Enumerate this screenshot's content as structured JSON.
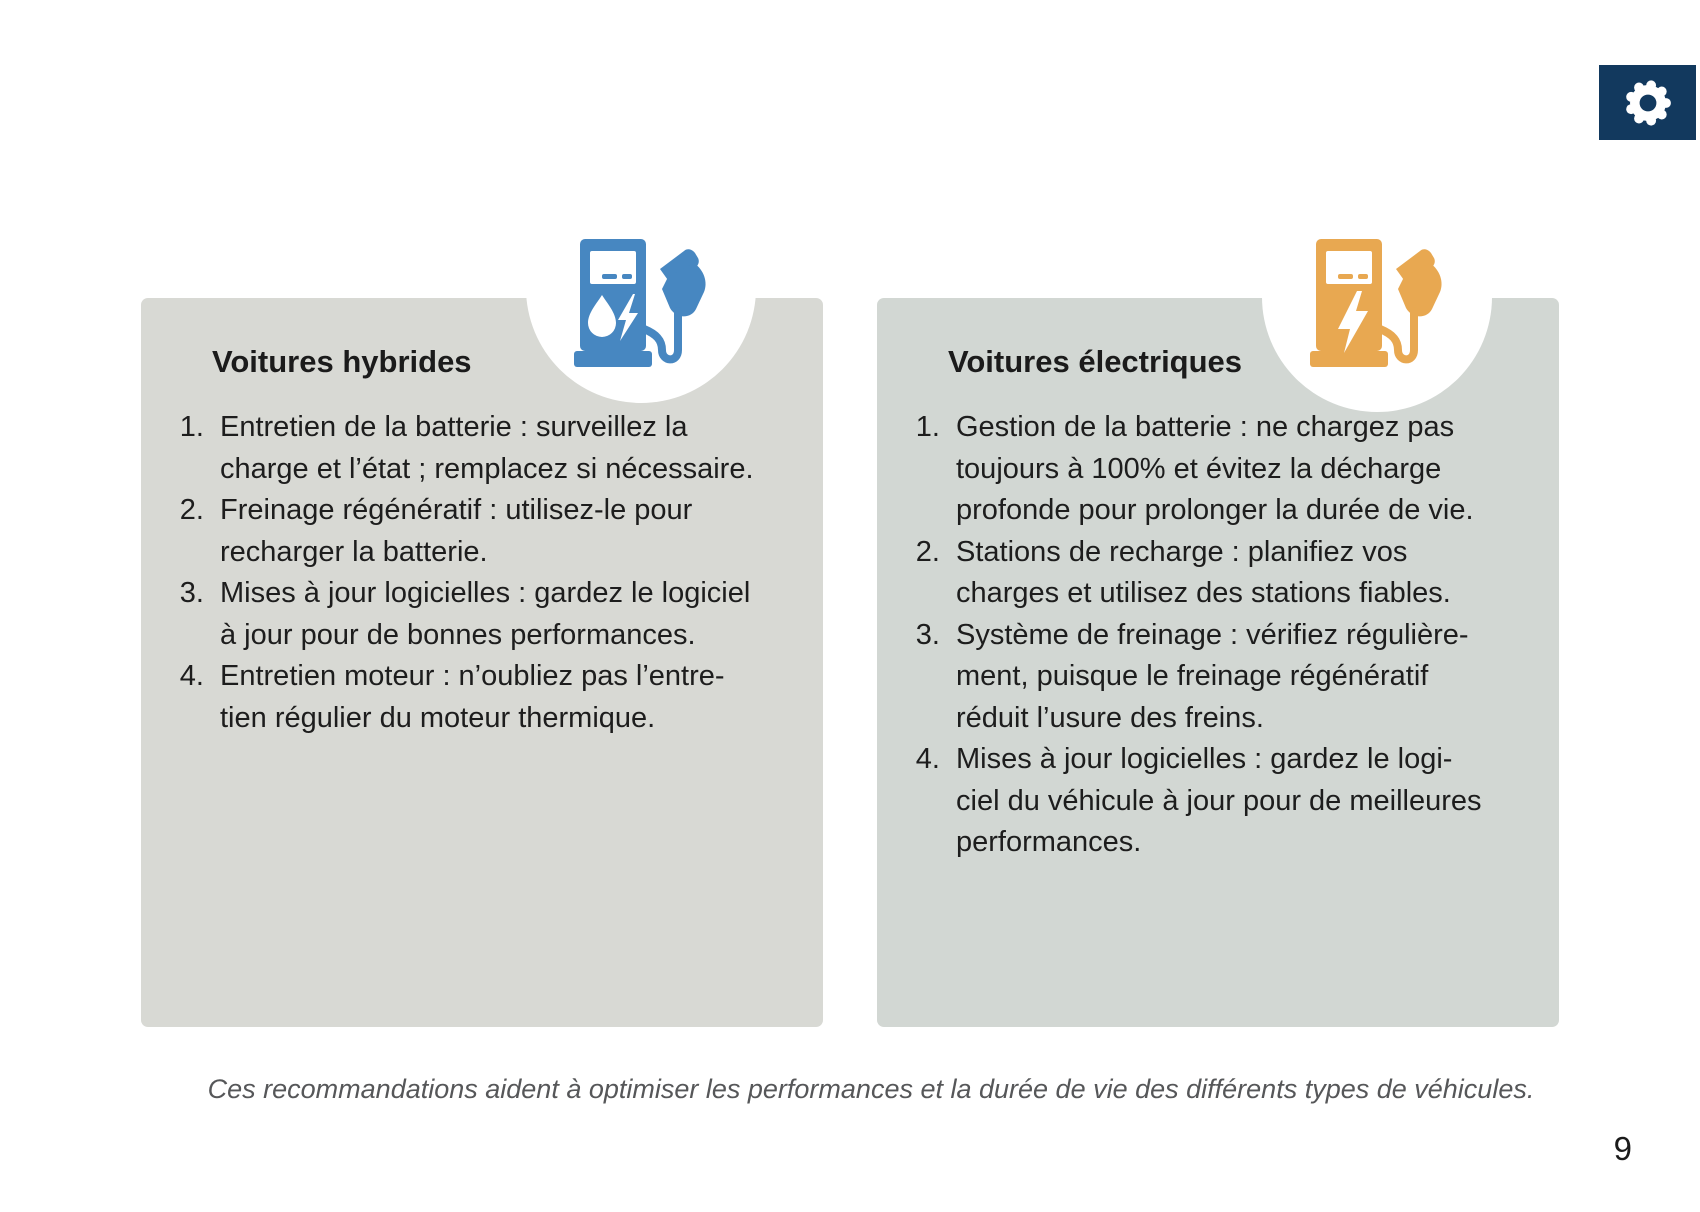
{
  "page": {
    "number": "9",
    "background": "#ffffff"
  },
  "colors": {
    "navy_box": "#12395e",
    "hybrid_accent": "#4787c1",
    "electric_accent": "#e8a851",
    "hybrid_card_bg": "#d8d9d4",
    "electric_card_bg": "#d2d7d3",
    "footer_text": "#565759"
  },
  "header": {
    "gear_icon": "gear-icon"
  },
  "cards": [
    {
      "id": "hybrid",
      "title": "Voitures hybrides",
      "icon": "fuel-pump-hybrid-icon",
      "items": [
        [
          "Entretien de la batterie : surveillez la",
          "charge et l’état ; remplacez si nécessaire."
        ],
        [
          "Freinage régénératif : utilisez-le pour",
          "recharger la batterie."
        ],
        [
          "Mises à jour logicielles : gardez le logiciel",
          "à jour pour de bonnes performances."
        ],
        [
          "Entretien moteur : n’oubliez pas l’entre-",
          "tien régulier du moteur thermique."
        ]
      ]
    },
    {
      "id": "electric",
      "title": "Voitures électriques",
      "icon": "ev-charger-icon",
      "items": [
        [
          "Gestion de la batterie : ne chargez pas",
          "toujours à 100% et évitez la décharge",
          "profonde pour prolonger la durée de vie."
        ],
        [
          "Stations de recharge : planifiez vos",
          "charges et utilisez des stations fiables."
        ],
        [
          "Système de freinage : vérifiez régulière-",
          "ment, puisque le freinage régénératif",
          "réduit l’usure des freins."
        ],
        [
          "Mises à jour logicielles : gardez le logi-",
          "ciel du véhicule à jour pour de meilleures",
          "performances."
        ]
      ]
    }
  ],
  "footer": {
    "note": "Ces recommandations aident à optimiser les performances et la durée de vie des différents types de véhicules."
  }
}
